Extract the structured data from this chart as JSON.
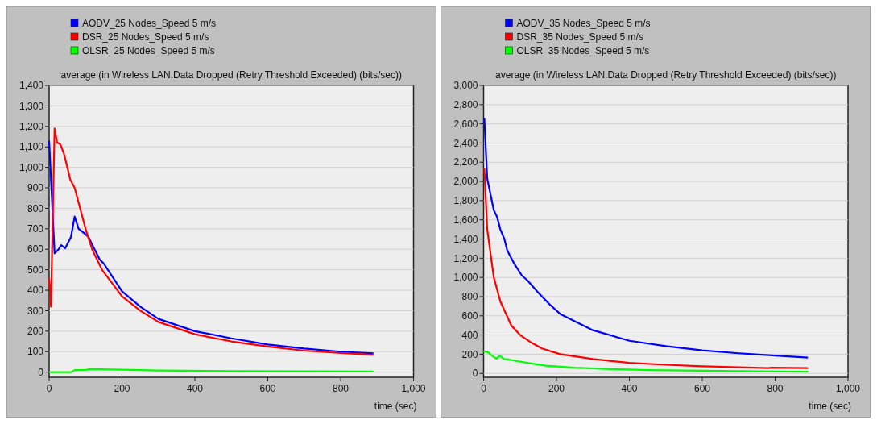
{
  "chart_data": [
    {
      "type": "line",
      "title": "average (in Wireless LAN.Data Dropped (Retry Threshold Exceeded) (bits/sec))",
      "xlabel": "time (sec)",
      "legend": "top left",
      "grid": "y",
      "xlim": [
        0,
        1000
      ],
      "ylim": [
        -25,
        1400
      ],
      "xticks": [
        0,
        200,
        400,
        600,
        800,
        {
          "value": 1000,
          "label": "1,000"
        }
      ],
      "yticks": [
        0,
        100,
        200,
        300,
        400,
        500,
        600,
        700,
        800,
        900,
        {
          "value": 1000,
          "label": "1,000"
        },
        {
          "value": 1100,
          "label": "1,100"
        },
        {
          "value": 1200,
          "label": "1,200"
        },
        {
          "value": 1300,
          "label": "1,300"
        },
        {
          "value": 1400,
          "label": "1,400"
        }
      ],
      "series": [
        {
          "name": "AODV_25 Nodes_Speed 5 m/s",
          "color": "#0000ff",
          "x": [
            0,
            15,
            26,
            33,
            44,
            60,
            70,
            81,
            95,
            108,
            119,
            139,
            150,
            200,
            250,
            300,
            400,
            500,
            600,
            700,
            800,
            890
          ],
          "values": [
            1130,
            580,
            600,
            620,
            605,
            660,
            760,
            700,
            680,
            660,
            620,
            550,
            530,
            395,
            320,
            260,
            200,
            165,
            135,
            115,
            100,
            92
          ]
        },
        {
          "name": "DSR_25 Nodes_Speed 5 m/s",
          "color": "#ff0000",
          "x": [
            0,
            5,
            15,
            22,
            30,
            40,
            50,
            58,
            70,
            85,
            100,
            118,
            145,
            200,
            250,
            300,
            400,
            500,
            600,
            700,
            800,
            890
          ],
          "values": [
            460,
            320,
            1190,
            1120,
            1115,
            1070,
            1000,
            940,
            900,
            800,
            700,
            600,
            500,
            370,
            300,
            245,
            185,
            150,
            125,
            105,
            93,
            85
          ]
        },
        {
          "name": "OLSR_25 Nodes_Speed 5 m/s",
          "color": "#00ff00",
          "x": [
            0,
            60,
            70,
            100,
            110,
            200,
            300,
            500,
            890
          ],
          "values": [
            0,
            0,
            10,
            10,
            15,
            12,
            8,
            5,
            3
          ]
        }
      ]
    },
    {
      "type": "line",
      "title": "average (in Wireless LAN.Data Dropped (Retry Threshold Exceeded) (bits/sec))",
      "xlabel": "time (sec)",
      "legend": "top left",
      "grid": "y",
      "xlim": [
        0,
        1000
      ],
      "ylim": [
        -40,
        3000
      ],
      "xticks": [
        0,
        200,
        400,
        600,
        800,
        {
          "value": 1000,
          "label": "1,000"
        }
      ],
      "yticks": [
        0,
        200,
        400,
        600,
        800,
        {
          "value": 1000,
          "label": "1,000"
        },
        {
          "value": 1200,
          "label": "1,200"
        },
        {
          "value": 1400,
          "label": "1,400"
        },
        {
          "value": 1600,
          "label": "1,600"
        },
        {
          "value": 1800,
          "label": "1,800"
        },
        {
          "value": 2000,
          "label": "2,000"
        },
        {
          "value": 2200,
          "label": "2,200"
        },
        {
          "value": 2400,
          "label": "2,400"
        },
        {
          "value": 2600,
          "label": "2,600"
        },
        {
          "value": 2800,
          "label": "2,800"
        },
        {
          "value": 3000,
          "label": "3,000"
        }
      ],
      "series": [
        {
          "name": "AODV_35 Nodes_Speed 5 m/s",
          "color": "#0000ff",
          "x": [
            2,
            10,
            28,
            37,
            46,
            57,
            65,
            83,
            105,
            120,
            148,
            181,
            210,
            300,
            400,
            500,
            600,
            700,
            800,
            890
          ],
          "values": [
            2660,
            2030,
            1700,
            1630,
            1500,
            1400,
            1280,
            1150,
            1020,
            970,
            850,
            720,
            620,
            450,
            340,
            285,
            240,
            210,
            185,
            165
          ]
        },
        {
          "name": "DSR_35 Nodes_Speed 5 m/s",
          "color": "#ff0000",
          "x": [
            2,
            10,
            28,
            46,
            76,
            100,
            127,
            160,
            210,
            300,
            400,
            500,
            600,
            700,
            780,
            790,
            890
          ],
          "values": [
            2140,
            1500,
            1000,
            750,
            500,
            400,
            330,
            260,
            200,
            150,
            110,
            90,
            75,
            65,
            55,
            60,
            55
          ]
        },
        {
          "name": "OLSR_35 Nodes_Speed 5 m/s",
          "color": "#00ff00",
          "x": [
            0,
            10,
            25,
            35,
            45,
            55,
            70,
            90,
            120,
            170,
            250,
            350,
            450,
            600,
            750,
            890
          ],
          "values": [
            230,
            225,
            180,
            155,
            185,
            150,
            145,
            130,
            110,
            80,
            60,
            45,
            35,
            28,
            22,
            18
          ]
        }
      ]
    }
  ]
}
